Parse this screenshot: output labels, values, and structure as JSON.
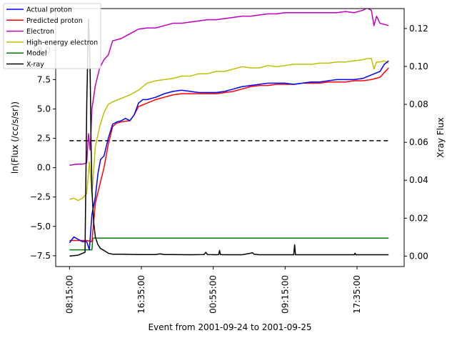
{
  "chart_data": {
    "type": "line",
    "xlabel": "Event from 2001-09-24 to 2001-09-25",
    "ylabel": "ln(Flux (/cc/s/sr))",
    "y2label": "Xray Flux",
    "x_ticks": [
      "08:15:00",
      "16:35:00",
      "00:55:00",
      "09:15:00",
      "17:35:00"
    ],
    "x_tick_hours": [
      0,
      8.333,
      16.667,
      25,
      33.333
    ],
    "x_range_hours": [
      -1.6,
      38.8
    ],
    "ylim": [
      -8.42,
      13.55
    ],
    "y_ticks": [
      "−7.5",
      "−5.0",
      "−2.5",
      "0.0",
      "2.5",
      "5.0",
      "7.5",
      "10.0"
    ],
    "y_tick_values": [
      -7.5,
      -5.0,
      -2.5,
      0.0,
      2.5,
      5.0,
      7.5,
      10.0
    ],
    "y2lim": [
      -0.0055,
      0.1305
    ],
    "y2_ticks": [
      "0.00",
      "0.02",
      "0.04",
      "0.06",
      "0.08",
      "0.10",
      "0.12"
    ],
    "y2_tick_values": [
      0.0,
      0.02,
      0.04,
      0.06,
      0.08,
      0.1,
      0.12
    ],
    "legend_position": "upper-left",
    "threshold_line": {
      "value": 2.3,
      "style": "dashed",
      "color": "#000000"
    },
    "series": [
      {
        "name": "Actual proton",
        "color": "#0000ff",
        "axis": "left",
        "x": [
          0,
          0.5,
          1,
          1.5,
          2,
          2.3,
          2.6,
          3,
          3.3,
          3.6,
          4,
          4.5,
          5,
          5.5,
          6,
          6.5,
          7,
          7.5,
          8,
          8.5,
          9,
          10,
          11,
          12,
          13,
          14,
          15,
          16,
          17,
          18,
          19,
          20,
          21,
          22,
          23,
          24,
          25,
          26,
          27,
          28,
          29,
          30,
          31,
          32,
          33,
          34,
          35,
          36,
          36.5,
          37
        ],
        "y": [
          -6.4,
          -5.9,
          -6.1,
          -6.3,
          -6.3,
          -7.0,
          -4.0,
          -2.5,
          -0.5,
          0.7,
          1.0,
          2.5,
          3.7,
          3.9,
          4.0,
          4.2,
          4.0,
          4.5,
          5.5,
          5.8,
          5.8,
          6.0,
          6.3,
          6.5,
          6.6,
          6.5,
          6.4,
          6.4,
          6.4,
          6.5,
          6.7,
          6.9,
          7.0,
          7.1,
          7.2,
          7.2,
          7.2,
          7.1,
          7.2,
          7.3,
          7.3,
          7.4,
          7.5,
          7.5,
          7.5,
          7.6,
          7.9,
          8.2,
          8.8,
          9.1
        ]
      },
      {
        "name": "Predicted proton",
        "color": "#ff0000",
        "axis": "left",
        "x": [
          0,
          1,
          2,
          2.6,
          3,
          3.5,
          4,
          4.5,
          5,
          5.5,
          6,
          7,
          7.5,
          8,
          9,
          10,
          11,
          12,
          13,
          14,
          15,
          16,
          17,
          18,
          19,
          20,
          21,
          22,
          23,
          24,
          25,
          26,
          27,
          28,
          29,
          30,
          31,
          32,
          33,
          34,
          35,
          36,
          37
        ],
        "y": [
          -6.2,
          -6.2,
          -6.2,
          -6.3,
          -3.0,
          -1.5,
          0.0,
          2.0,
          3.5,
          3.8,
          3.9,
          4.0,
          4.5,
          5.2,
          5.5,
          5.8,
          6.0,
          6.2,
          6.3,
          6.3,
          6.3,
          6.3,
          6.3,
          6.4,
          6.5,
          6.7,
          6.9,
          7.0,
          7.0,
          7.1,
          7.1,
          7.1,
          7.2,
          7.2,
          7.2,
          7.3,
          7.3,
          7.3,
          7.4,
          7.4,
          7.5,
          7.7,
          8.5
        ]
      },
      {
        "name": "Electron",
        "color": "#bf00bf",
        "axis": "left",
        "x": [
          0,
          0.8,
          1.5,
          2.0,
          2.2,
          2.4,
          2.6,
          3.0,
          3.5,
          4.0,
          4.5,
          5,
          6,
          7,
          8,
          9,
          10,
          11,
          12,
          13,
          14,
          15,
          16,
          17,
          18,
          19,
          20,
          21,
          22,
          23,
          24,
          25,
          26,
          27,
          28,
          29,
          30,
          31,
          32,
          33,
          34,
          34.5,
          35,
          35.3,
          35.6,
          36,
          36.5,
          37
        ],
        "y": [
          0.2,
          0.3,
          0.3,
          0.4,
          2.9,
          1.5,
          5.0,
          7.0,
          8.5,
          9.2,
          9.6,
          10.8,
          11.0,
          11.4,
          11.8,
          11.9,
          11.9,
          12.1,
          12.3,
          12.3,
          12.4,
          12.5,
          12.6,
          12.6,
          12.7,
          12.8,
          12.9,
          12.9,
          13.0,
          13.1,
          13.1,
          13.2,
          13.2,
          13.2,
          13.2,
          13.2,
          13.2,
          13.2,
          13.3,
          13.2,
          13.4,
          13.6,
          13.4,
          12.1,
          12.9,
          12.3,
          12.2,
          12.1
        ]
      },
      {
        "name": "High-energy electron",
        "color": "#bfbf00",
        "axis": "left",
        "x": [
          0,
          0.5,
          1,
          1.5,
          2,
          2.3,
          2.6,
          3,
          3.5,
          4,
          4.5,
          5,
          6,
          7,
          8,
          9,
          10,
          11,
          12,
          13,
          14,
          15,
          16,
          17,
          18,
          19,
          20,
          21,
          22,
          23,
          24,
          25,
          26,
          27,
          28,
          29,
          30,
          31,
          32,
          33,
          34,
          34.6,
          35,
          35.3,
          35.6,
          36,
          36.5,
          37
        ],
        "y": [
          -2.7,
          -2.6,
          -2.8,
          -2.6,
          -2.2,
          0.5,
          -2.3,
          1.8,
          3.5,
          4.7,
          5.4,
          5.6,
          5.9,
          6.2,
          6.6,
          7.2,
          7.4,
          7.5,
          7.6,
          7.8,
          7.8,
          8.0,
          8.0,
          8.2,
          8.2,
          8.4,
          8.6,
          8.5,
          8.5,
          8.7,
          8.6,
          8.7,
          8.8,
          8.8,
          8.8,
          8.9,
          8.9,
          9.0,
          9.0,
          9.1,
          9.2,
          9.3,
          9.3,
          8.4,
          9.0,
          9.0,
          9.1,
          8.9
        ]
      },
      {
        "name": "Model",
        "color": "#008000",
        "axis": "left",
        "x": [
          0,
          2.6,
          2.7,
          37
        ],
        "y": [
          -7.0,
          -7.0,
          -6.0,
          -6.0
        ]
      },
      {
        "name": "X-ray",
        "color": "#000000",
        "axis": "right",
        "x": [
          0,
          1,
          1.8,
          2.0,
          2.2,
          2.3,
          2.4,
          2.5,
          2.6,
          2.8,
          3.0,
          3.3,
          3.6,
          4.0,
          4.5,
          5,
          6,
          8,
          10,
          10.5,
          11,
          12,
          14,
          15.6,
          15.8,
          16,
          17,
          17.3,
          17.4,
          17.5,
          18,
          20,
          21,
          21.2,
          21.4,
          22,
          24,
          25,
          26,
          26.1,
          26.2,
          26.3,
          26.4,
          28,
          30,
          32,
          33,
          33.1,
          33.2,
          34,
          36,
          37
        ],
        "y": [
          0.0,
          0.0005,
          0.002,
          0.08,
          0.125,
          0.115,
          0.095,
          0.06,
          0.035,
          0.018,
          0.01,
          0.006,
          0.004,
          0.003,
          0.0015,
          0.001,
          0.001,
          0.0008,
          0.0008,
          0.0012,
          0.0008,
          0.0008,
          0.0007,
          0.0008,
          0.002,
          0.0008,
          0.0007,
          0.0008,
          0.003,
          0.0008,
          0.0007,
          0.0007,
          0.0015,
          0.0018,
          0.001,
          0.0007,
          0.0007,
          0.0007,
          0.0007,
          0.006,
          0.0007,
          0.0007,
          0.0007,
          0.0007,
          0.0007,
          0.0007,
          0.0007,
          0.0015,
          0.0007,
          0.0007,
          0.0007,
          0.0007
        ]
      }
    ]
  }
}
